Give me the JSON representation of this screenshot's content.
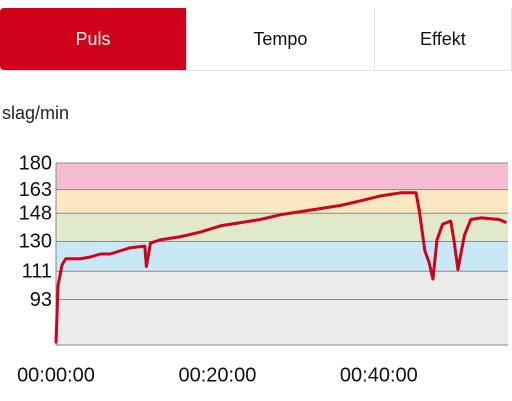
{
  "tabs": [
    "Puls",
    "Tempo",
    "Effekt"
  ],
  "active_tab": 0,
  "chart_data": {
    "type": "line",
    "y_label": "slag/min",
    "x": [
      0,
      0.25,
      0.75,
      1.2,
      3,
      4.2,
      5.5,
      6.7,
      9.2,
      11,
      11.2,
      11.7,
      12.9,
      15.4,
      17.9,
      20.4,
      22.9,
      25.3,
      27.8,
      30.3,
      32.8,
      35.3,
      37.8,
      40.2,
      42.7,
      44.6,
      45,
      45.7,
      46.2,
      46.7,
      47.2,
      47.9,
      48.9,
      49.3,
      49.8,
      50.6,
      51.4,
      52.7,
      54.9,
      55.8
    ],
    "series": [
      {
        "color": "#d0021b",
        "values": [
          65,
          102,
          115,
          119,
          119,
          120,
          122,
          122,
          126,
          127,
          114,
          129,
          131,
          133,
          136,
          140,
          142,
          144,
          147,
          149,
          151,
          153,
          156,
          159,
          161,
          161,
          150,
          124,
          117,
          106,
          131,
          141,
          143,
          131,
          112,
          134,
          144,
          145,
          144,
          142
        ]
      }
    ],
    "xlim": [
      0,
      56
    ],
    "xticks": [
      {
        "value": 0,
        "label": "00:00:00"
      },
      {
        "value": 20,
        "label": "00:20:00"
      },
      {
        "value": 40,
        "label": "00:40:00"
      }
    ],
    "ylim": [
      64,
      180
    ],
    "yticks": [
      93,
      111,
      130,
      148,
      163,
      180
    ],
    "band_colors": [
      "#ececec",
      "#ececec",
      "#c9e8f6",
      "#e0e9c9",
      "#fbe8c1",
      "#f6bdd1"
    ],
    "grid": true
  }
}
